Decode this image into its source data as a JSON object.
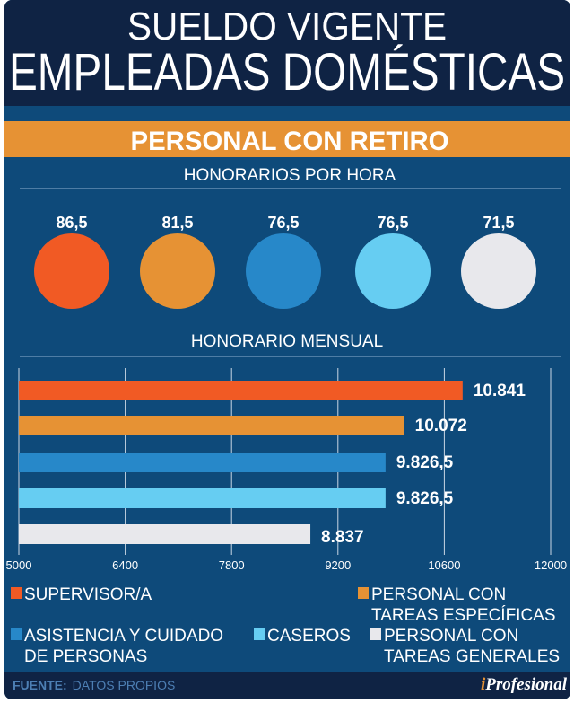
{
  "header": {
    "line1": "SUELDO VIGENTE",
    "line2": "EMPLEADAS DOMÉSTICAS"
  },
  "banner": "PERSONAL CON RETIRO",
  "hourly_title": "HONORARIOS POR HORA",
  "monthly_title": "HONORARIO MENSUAL",
  "footer": {
    "label": "FUENTE:",
    "source": "DATOS PROPIOS",
    "brand_i": "i",
    "brand_rest": "Profesional"
  },
  "colors": {
    "supervisor": "#f15a24",
    "especificas": "#e69234",
    "asistencia": "#2788c9",
    "caseros": "#66cdf2",
    "generales": "#e8e8ec"
  },
  "chart_data": [
    {
      "type": "bubble",
      "title": "HONORARIOS POR HORA",
      "categories": [
        "SUPERVISOR/A",
        "PERSONAL CON TAREAS ESPECÍFICAS",
        "ASISTENCIA Y CUIDADO DE PERSONAS",
        "CASEROS",
        "PERSONAL CON TAREAS GENERALES"
      ],
      "values": [
        86.5,
        81.5,
        76.5,
        76.5,
        71.5
      ],
      "labels": [
        "86,5",
        "81,5",
        "76,5",
        "76,5",
        "71,5"
      ]
    },
    {
      "type": "bar",
      "orientation": "horizontal",
      "title": "HONORARIO MENSUAL",
      "categories": [
        "SUPERVISOR/A",
        "PERSONAL CON TAREAS ESPECÍFICAS",
        "ASISTENCIA Y CUIDADO DE PERSONAS",
        "CASEROS",
        "PERSONAL CON TAREAS GENERALES"
      ],
      "values": [
        10841,
        10072,
        9826.5,
        9826.5,
        8837
      ],
      "labels": [
        "10.841",
        "10.072",
        "9.826,5",
        "9.826,5",
        "8.837"
      ],
      "xlim": [
        5000,
        12000
      ],
      "xticks": [
        "5000",
        "6400",
        "7800",
        "9200",
        "10600",
        "12000"
      ],
      "grid": true,
      "legend": {
        "position": "bottom",
        "items": [
          {
            "lines": [
              "SUPERVISOR/A"
            ],
            "color": "#f15a24"
          },
          {
            "lines": [
              "PERSONAL CON",
              "TAREAS ESPECÍFICAS"
            ],
            "color": "#e69234"
          },
          {
            "lines": [
              "ASISTENCIA Y CUIDADO",
              "DE PERSONAS"
            ],
            "color": "#2788c9"
          },
          {
            "lines": [
              "CASEROS"
            ],
            "color": "#66cdf2"
          },
          {
            "lines": [
              "PERSONAL CON",
              "TAREAS GENERALES"
            ],
            "color": "#e8e8ec"
          }
        ]
      }
    }
  ]
}
